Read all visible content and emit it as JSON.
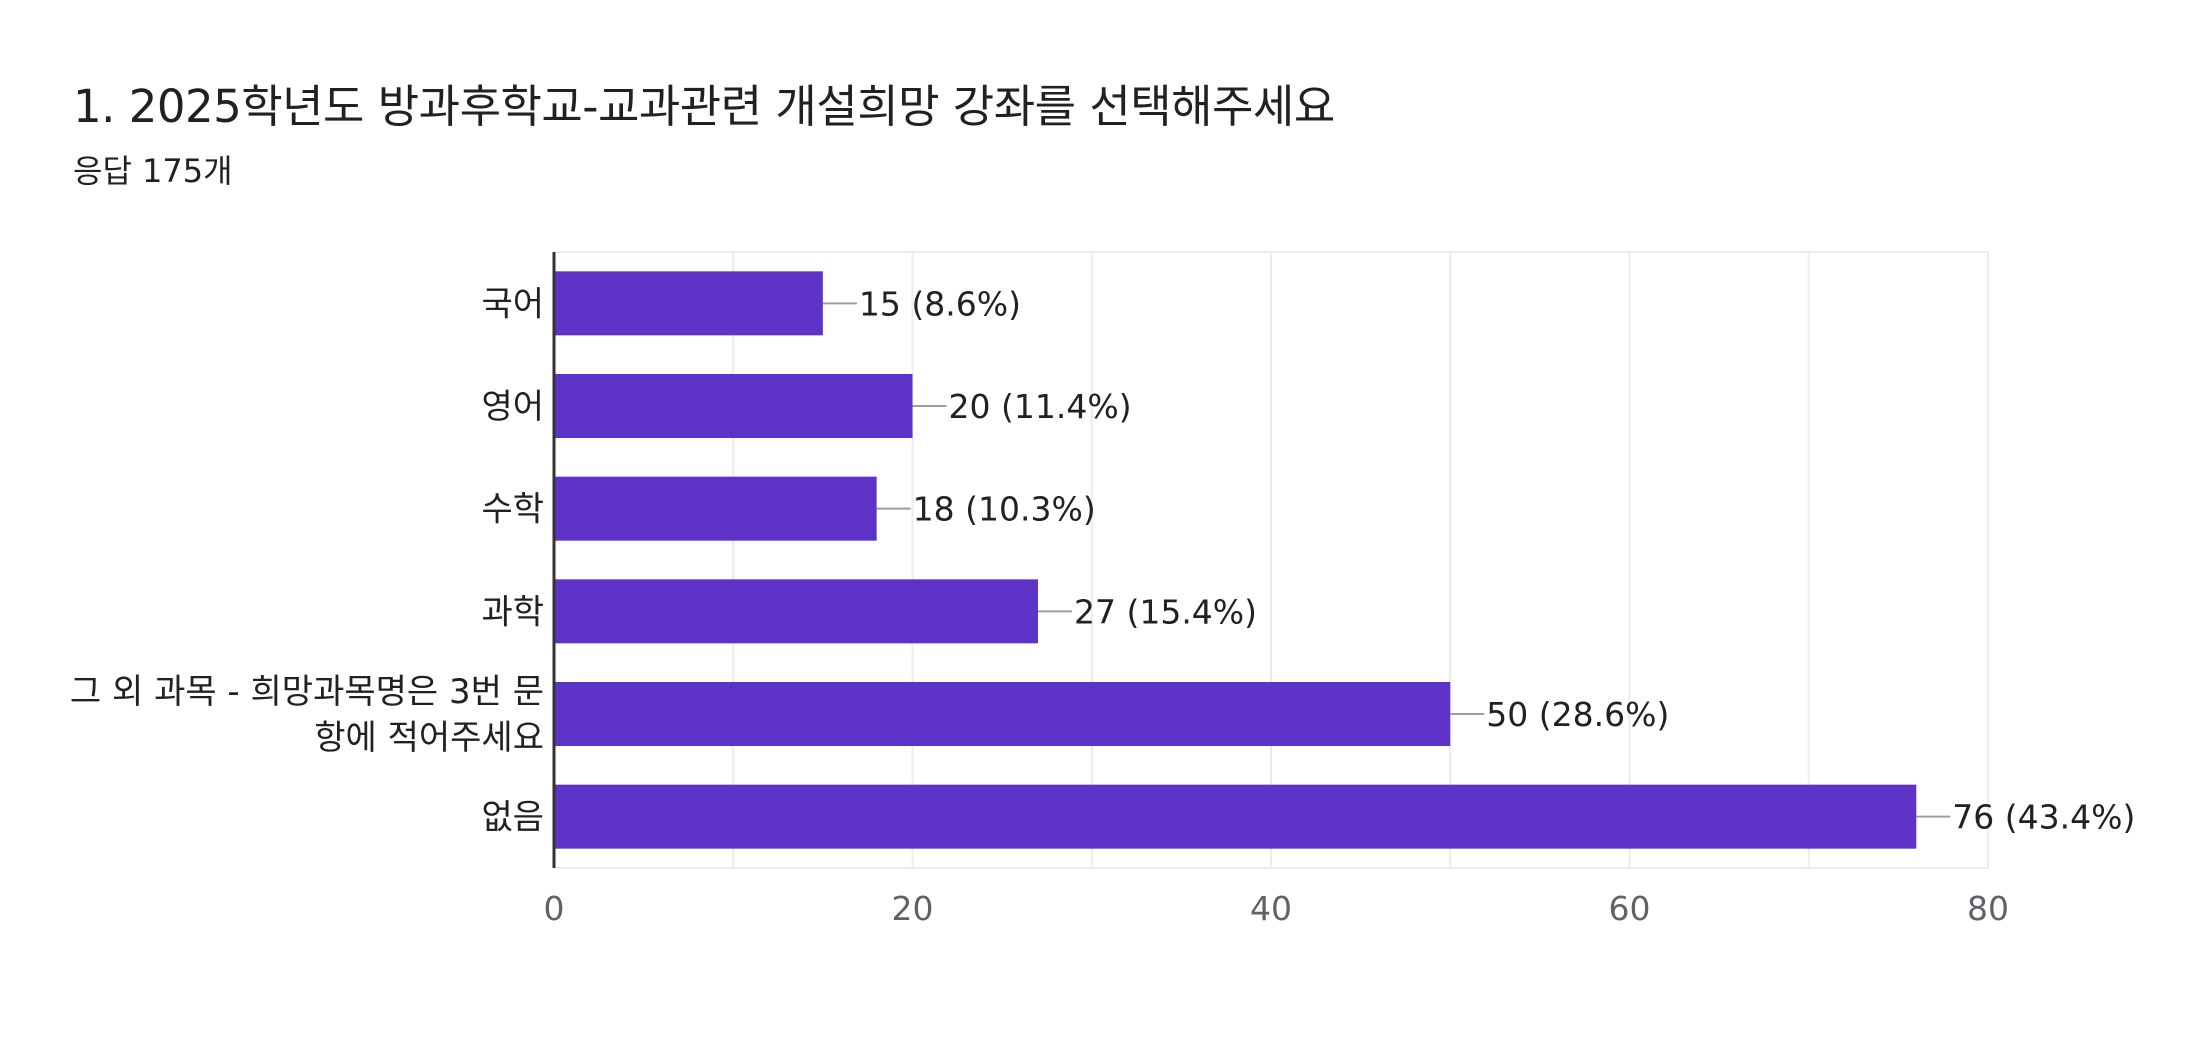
{
  "header": {
    "title": "1. 2025학년도 방과후학교-교과관련 개설희망 강좌를 선택해주세요",
    "responses": "응답 175개"
  },
  "colors": {
    "bar": "#5c33c6",
    "axis": "#333333",
    "grid": "#ececec",
    "leader": "#9e9e9e",
    "text": "#202124",
    "tick": "#5f6368"
  },
  "chart_data": {
    "type": "bar",
    "orientation": "horizontal",
    "categories": [
      [
        "국어"
      ],
      [
        "영어"
      ],
      [
        "수학"
      ],
      [
        "과학"
      ],
      [
        "그 외 과목 - 희망과목명은 3번 문",
        "항에 적어주세요"
      ],
      [
        "없음"
      ]
    ],
    "values": [
      15,
      20,
      18,
      27,
      50,
      76
    ],
    "labels": [
      "15 (8.6%)",
      "20 (11.4%)",
      "18 (10.3%)",
      "27 (15.4%)",
      "50 (28.6%)",
      "76 (43.4%)"
    ],
    "xlim": [
      0,
      80
    ],
    "xticks": [
      0,
      20,
      40,
      60,
      80
    ],
    "grid": true,
    "legend": "none"
  }
}
